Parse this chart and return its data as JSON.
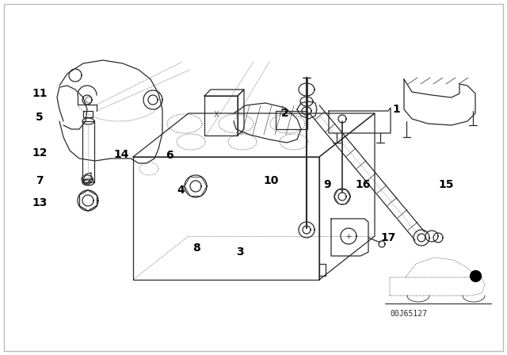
{
  "bg_color": "#ffffff",
  "part_color": "#2a2a2a",
  "label_color": "#000000",
  "diagram_code": "00J65127",
  "fig_w": 6.4,
  "fig_h": 4.48,
  "dpi": 100
}
